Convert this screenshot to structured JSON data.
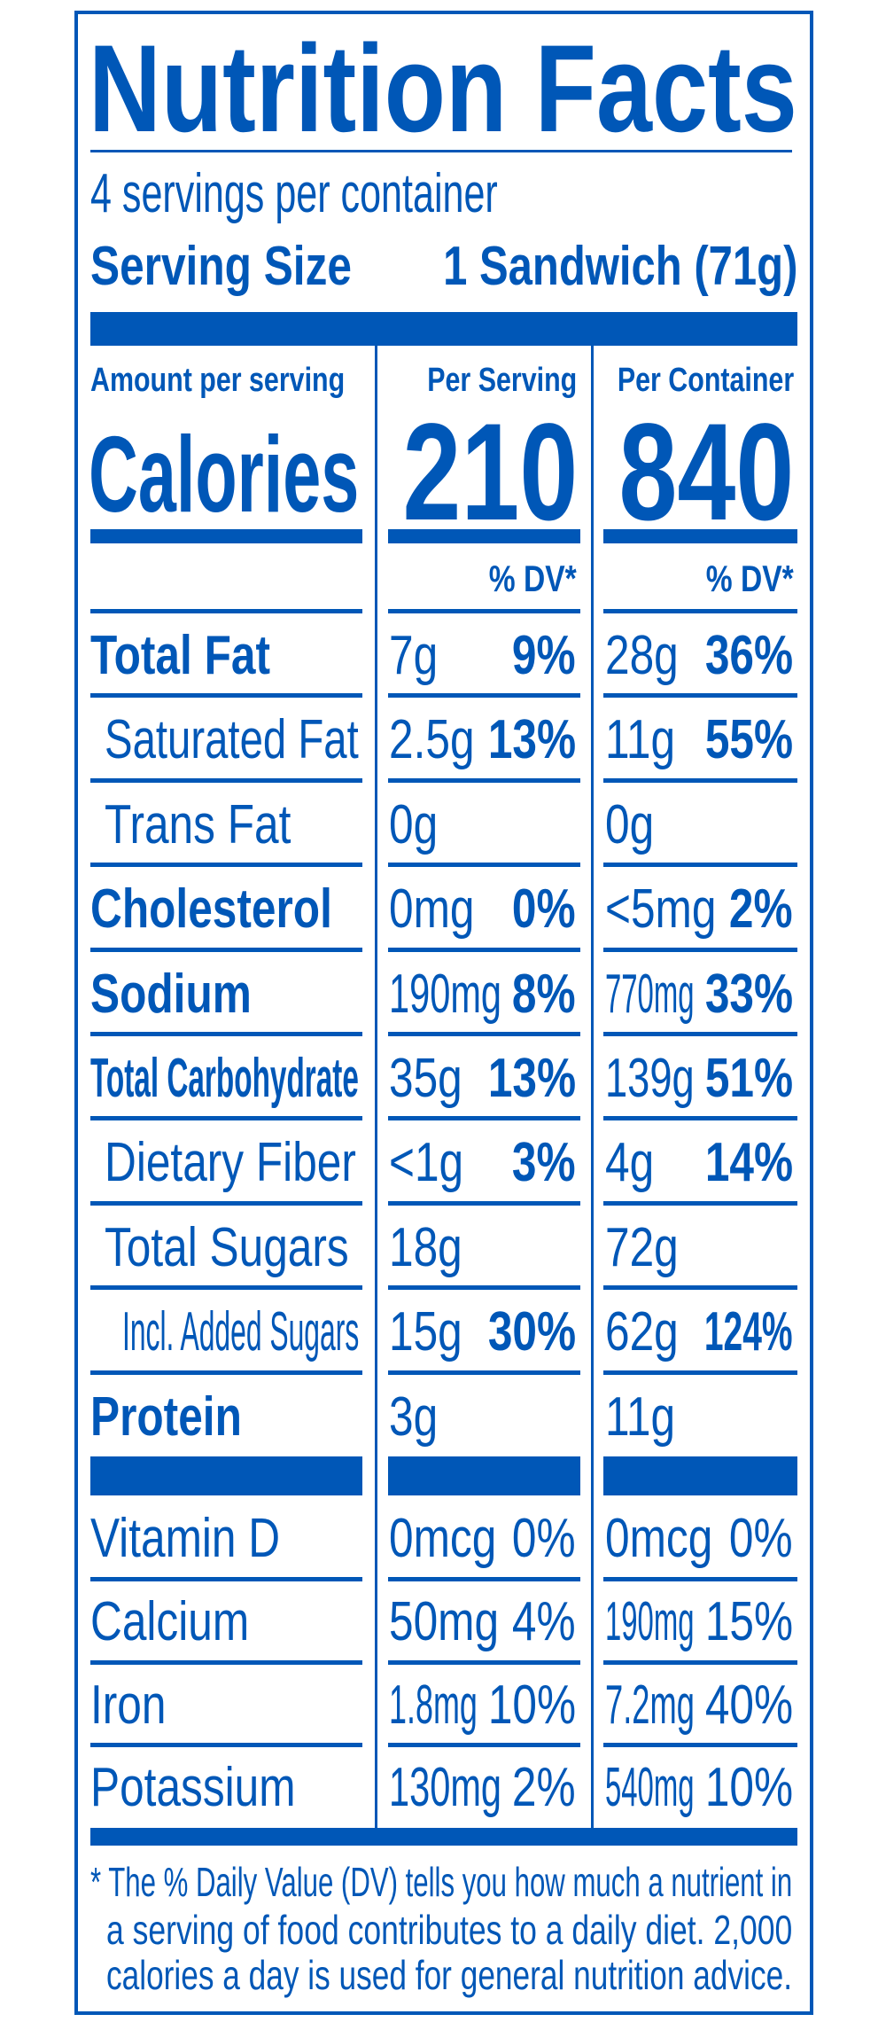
{
  "title": "Nutrition Facts",
  "servings_per_container": "4 servings per container",
  "serving_size_label": "Serving Size",
  "serving_size_value": "1 Sandwich (71g)",
  "amount_per_serving": "Amount per serving",
  "calories_label": "Calories",
  "per_serving_header": "Per Serving",
  "per_container_header": "Per Container",
  "calories_per_serving": "210",
  "calories_per_container": "840",
  "dv_header": "% DV*",
  "nutrients": [
    {
      "name": "Total Fat",
      "bold": true,
      "indent": 0,
      "serving": "7g",
      "serving_dv": "9%",
      "container": "28g",
      "container_dv": "36%"
    },
    {
      "name": "Saturated Fat",
      "bold": false,
      "indent": 1,
      "serving": "2.5g",
      "serving_dv": "13%",
      "container": "11g",
      "container_dv": "55%"
    },
    {
      "name": "Trans Fat",
      "bold": false,
      "indent": 1,
      "serving": "0g",
      "serving_dv": "",
      "container": "0g",
      "container_dv": ""
    },
    {
      "name": "Cholesterol",
      "bold": true,
      "indent": 0,
      "serving": "0mg",
      "serving_dv": "0%",
      "container": "<5mg",
      "container_dv": "2%"
    },
    {
      "name": "Sodium",
      "bold": true,
      "indent": 0,
      "serving": "190mg",
      "serving_dv": "8%",
      "container": "770mg",
      "container_dv": "33%"
    },
    {
      "name": "Total Carbohydrate",
      "bold": true,
      "indent": 0,
      "serving": "35g",
      "serving_dv": "13%",
      "container": "139g",
      "container_dv": "51%"
    },
    {
      "name": "Dietary Fiber",
      "bold": false,
      "indent": 1,
      "serving": "<1g",
      "serving_dv": "3%",
      "container": "4g",
      "container_dv": "14%"
    },
    {
      "name": "Total Sugars",
      "bold": false,
      "indent": 1,
      "serving": "18g",
      "serving_dv": "",
      "container": "72g",
      "container_dv": ""
    },
    {
      "name": "Incl. Added Sugars",
      "bold": false,
      "indent": 2,
      "serving": "15g",
      "serving_dv": "30%",
      "container": "62g",
      "container_dv": "124%"
    },
    {
      "name": "Protein",
      "bold": true,
      "indent": 0,
      "serving": "3g",
      "serving_dv": "",
      "container": "11g",
      "container_dv": ""
    }
  ],
  "vitamins": [
    {
      "name": "Vitamin D",
      "serving": "0mcg",
      "serving_dv": "0%",
      "container": "0mcg",
      "container_dv": "0%"
    },
    {
      "name": "Calcium",
      "serving": "50mg",
      "serving_dv": "4%",
      "container": "190mg",
      "container_dv": "15%"
    },
    {
      "name": "Iron",
      "serving": "1.8mg",
      "serving_dv": "10%",
      "container": "7.2mg",
      "container_dv": "40%"
    },
    {
      "name": "Potassium",
      "serving": "130mg",
      "serving_dv": "2%",
      "container": "540mg",
      "container_dv": "10%"
    }
  ],
  "footnote": [
    "* The % Daily Value (DV) tells you how much a nutrient in",
    "a serving of food contributes to a daily diet. 2,000",
    "calories a day is used for general nutrition advice."
  ],
  "colors": {
    "ink": "#0057b7",
    "background": "#ffffff"
  }
}
